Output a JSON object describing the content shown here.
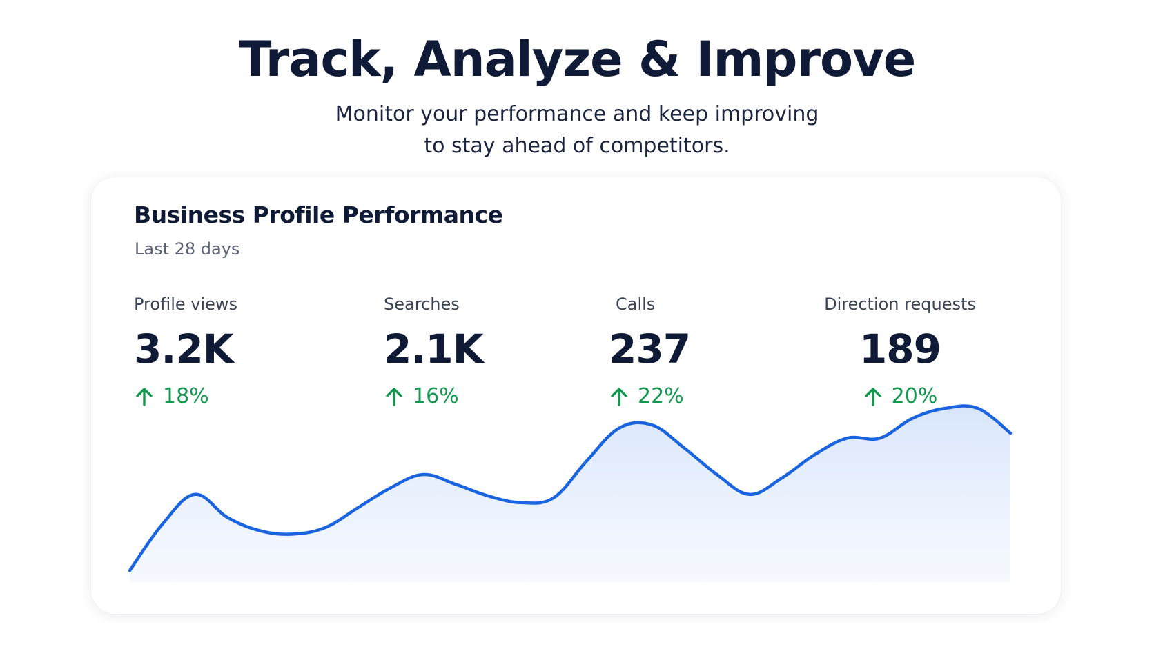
{
  "hero": {
    "title": "Track, Analyze & Improve",
    "subtitle_line1": "Monitor your performance and keep improving",
    "subtitle_line2": "to stay ahead of competitors."
  },
  "card": {
    "title": "Business Profile Performance",
    "subtitle": "Last 28 days"
  },
  "metrics": [
    {
      "label": "Profile views",
      "value": "3.2K",
      "change": "18%",
      "trend_icon": "arrow-up-icon"
    },
    {
      "label": "Searches",
      "value": "2.1K",
      "change": "16%",
      "trend_icon": "arrow-up-icon"
    },
    {
      "label": "Calls",
      "value": "237",
      "change": "22%",
      "trend_icon": "arrow-up-icon"
    },
    {
      "label": "Direction requests",
      "value": "189",
      "change": "20%",
      "trend_icon": "arrow-up-icon"
    }
  ],
  "colors": {
    "title": "#0f1a36",
    "positive": "#14984f",
    "line": "#1a64e0",
    "area": "#d9e6fb"
  },
  "chart_data": {
    "type": "area",
    "x": [
      0,
      1,
      2,
      3,
      4,
      5,
      6,
      7,
      8,
      9,
      10,
      11,
      12,
      13,
      14,
      15,
      16,
      17,
      18,
      19,
      20,
      21,
      22,
      23,
      24,
      25,
      26,
      27
    ],
    "series": [
      {
        "values": [
          2,
          30,
          48,
          34,
          26,
          24,
          28,
          40,
          52,
          60,
          54,
          47,
          43,
          46,
          68,
          88,
          90,
          76,
          60,
          48,
          58,
          72,
          82,
          82,
          94,
          100,
          100,
          85
        ]
      }
    ],
    "ylim": [
      0,
      100
    ],
    "grid": false,
    "legend": "none"
  }
}
